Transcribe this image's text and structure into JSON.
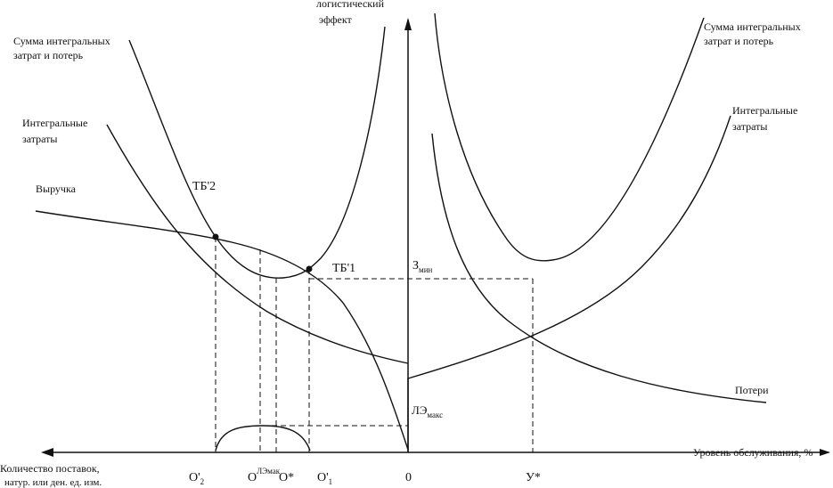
{
  "diagram": {
    "y_axis_label": [
      "логистический",
      "эффект"
    ],
    "x_axis_label": "Уровень обслуживания, %",
    "left_axis_label": [
      "Количество поставок,",
      "натур. или ден. ед. изм."
    ],
    "left_sum_label": [
      "Сумма интегральных",
      "затрат и потерь"
    ],
    "right_sum_label": [
      "Сумма интегральных",
      "затрат и потерь"
    ],
    "left_integral_label": [
      "Интегральные",
      "затраты"
    ],
    "right_integral_label": [
      "Интегральные",
      "затраты"
    ],
    "revenue_label": "Выручка",
    "losses_label": "Потери",
    "tb2_label": "ТБ'2",
    "tb1_label": "ТБ'1",
    "zmin_label": {
      "symbol": "З",
      "sub": "мин"
    },
    "le_max_label": {
      "symbol": "ЛЭ",
      "sub": "макс"
    },
    "x_labels": [
      {
        "symbol": "O'",
        "sub": "2"
      },
      {
        "symbol": "O",
        "sup": "ЛЭмак"
      },
      {
        "symbol": "O*"
      },
      {
        "symbol": "O'",
        "sub": "1"
      },
      {
        "symbol": "0"
      },
      {
        "symbol": "У*"
      }
    ]
  }
}
